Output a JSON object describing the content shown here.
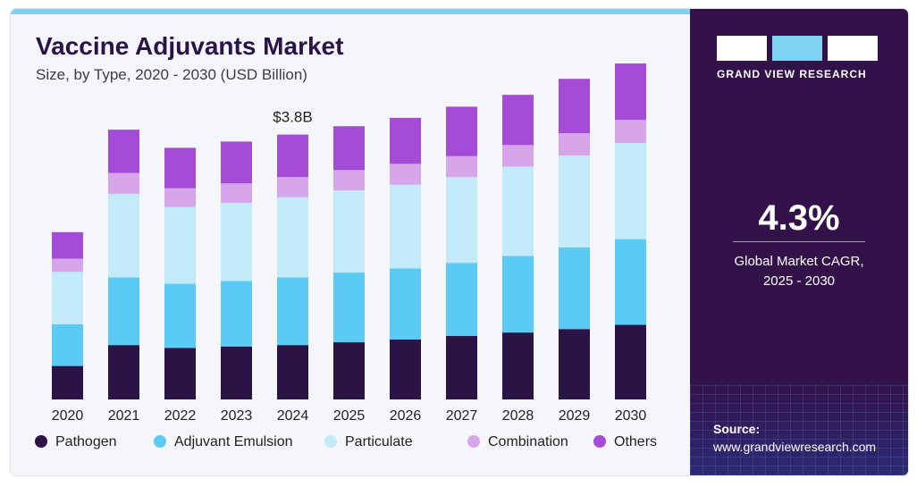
{
  "header": {
    "title": "Vaccine Adjuvants Market",
    "subtitle": "Size, by Type, 2020 - 2030 (USD Billion)"
  },
  "sidebar": {
    "brand": "GRAND VIEW RESEARCH",
    "cagr_value": "4.3%",
    "cagr_label_line1": "Global Market CAGR,",
    "cagr_label_line2": "2025 - 2030",
    "source_label": "Source:",
    "source_url": "www.grandviewresearch.com"
  },
  "colors": {
    "title": "#2a1445",
    "panel": "#33124a",
    "accent": "#7fd2f3"
  },
  "chart_data": {
    "type": "bar",
    "stacked": true,
    "categories": [
      "2020",
      "2021",
      "2022",
      "2023",
      "2024",
      "2025",
      "2026",
      "2027",
      "2028",
      "2029",
      "2030"
    ],
    "series": [
      {
        "name": "Pathogen",
        "color": "#2a1445",
        "values": [
          0.48,
          0.78,
          0.74,
          0.76,
          0.78,
          0.82,
          0.86,
          0.91,
          0.96,
          1.01,
          1.07
        ]
      },
      {
        "name": "Adjuvant Emulsion",
        "color": "#5bcbf5",
        "values": [
          0.6,
          0.97,
          0.92,
          0.94,
          0.97,
          1.0,
          1.02,
          1.05,
          1.1,
          1.17,
          1.23
        ]
      },
      {
        "name": "Particulate",
        "color": "#c3eaf9",
        "values": [
          0.75,
          1.2,
          1.1,
          1.12,
          1.15,
          1.18,
          1.2,
          1.23,
          1.28,
          1.32,
          1.38
        ]
      },
      {
        "name": "Combination",
        "color": "#d7a6ea",
        "values": [
          0.19,
          0.3,
          0.27,
          0.28,
          0.29,
          0.29,
          0.3,
          0.3,
          0.31,
          0.32,
          0.33
        ]
      },
      {
        "name": "Others",
        "color": "#a54cd6",
        "values": [
          0.38,
          0.62,
          0.58,
          0.6,
          0.61,
          0.63,
          0.66,
          0.71,
          0.72,
          0.78,
          0.81
        ]
      }
    ],
    "annotations": [
      {
        "category": "2024",
        "label": "$3.8B"
      }
    ],
    "ylim": [
      0,
      5.0
    ],
    "grid": false,
    "legend_position": "bottom"
  }
}
